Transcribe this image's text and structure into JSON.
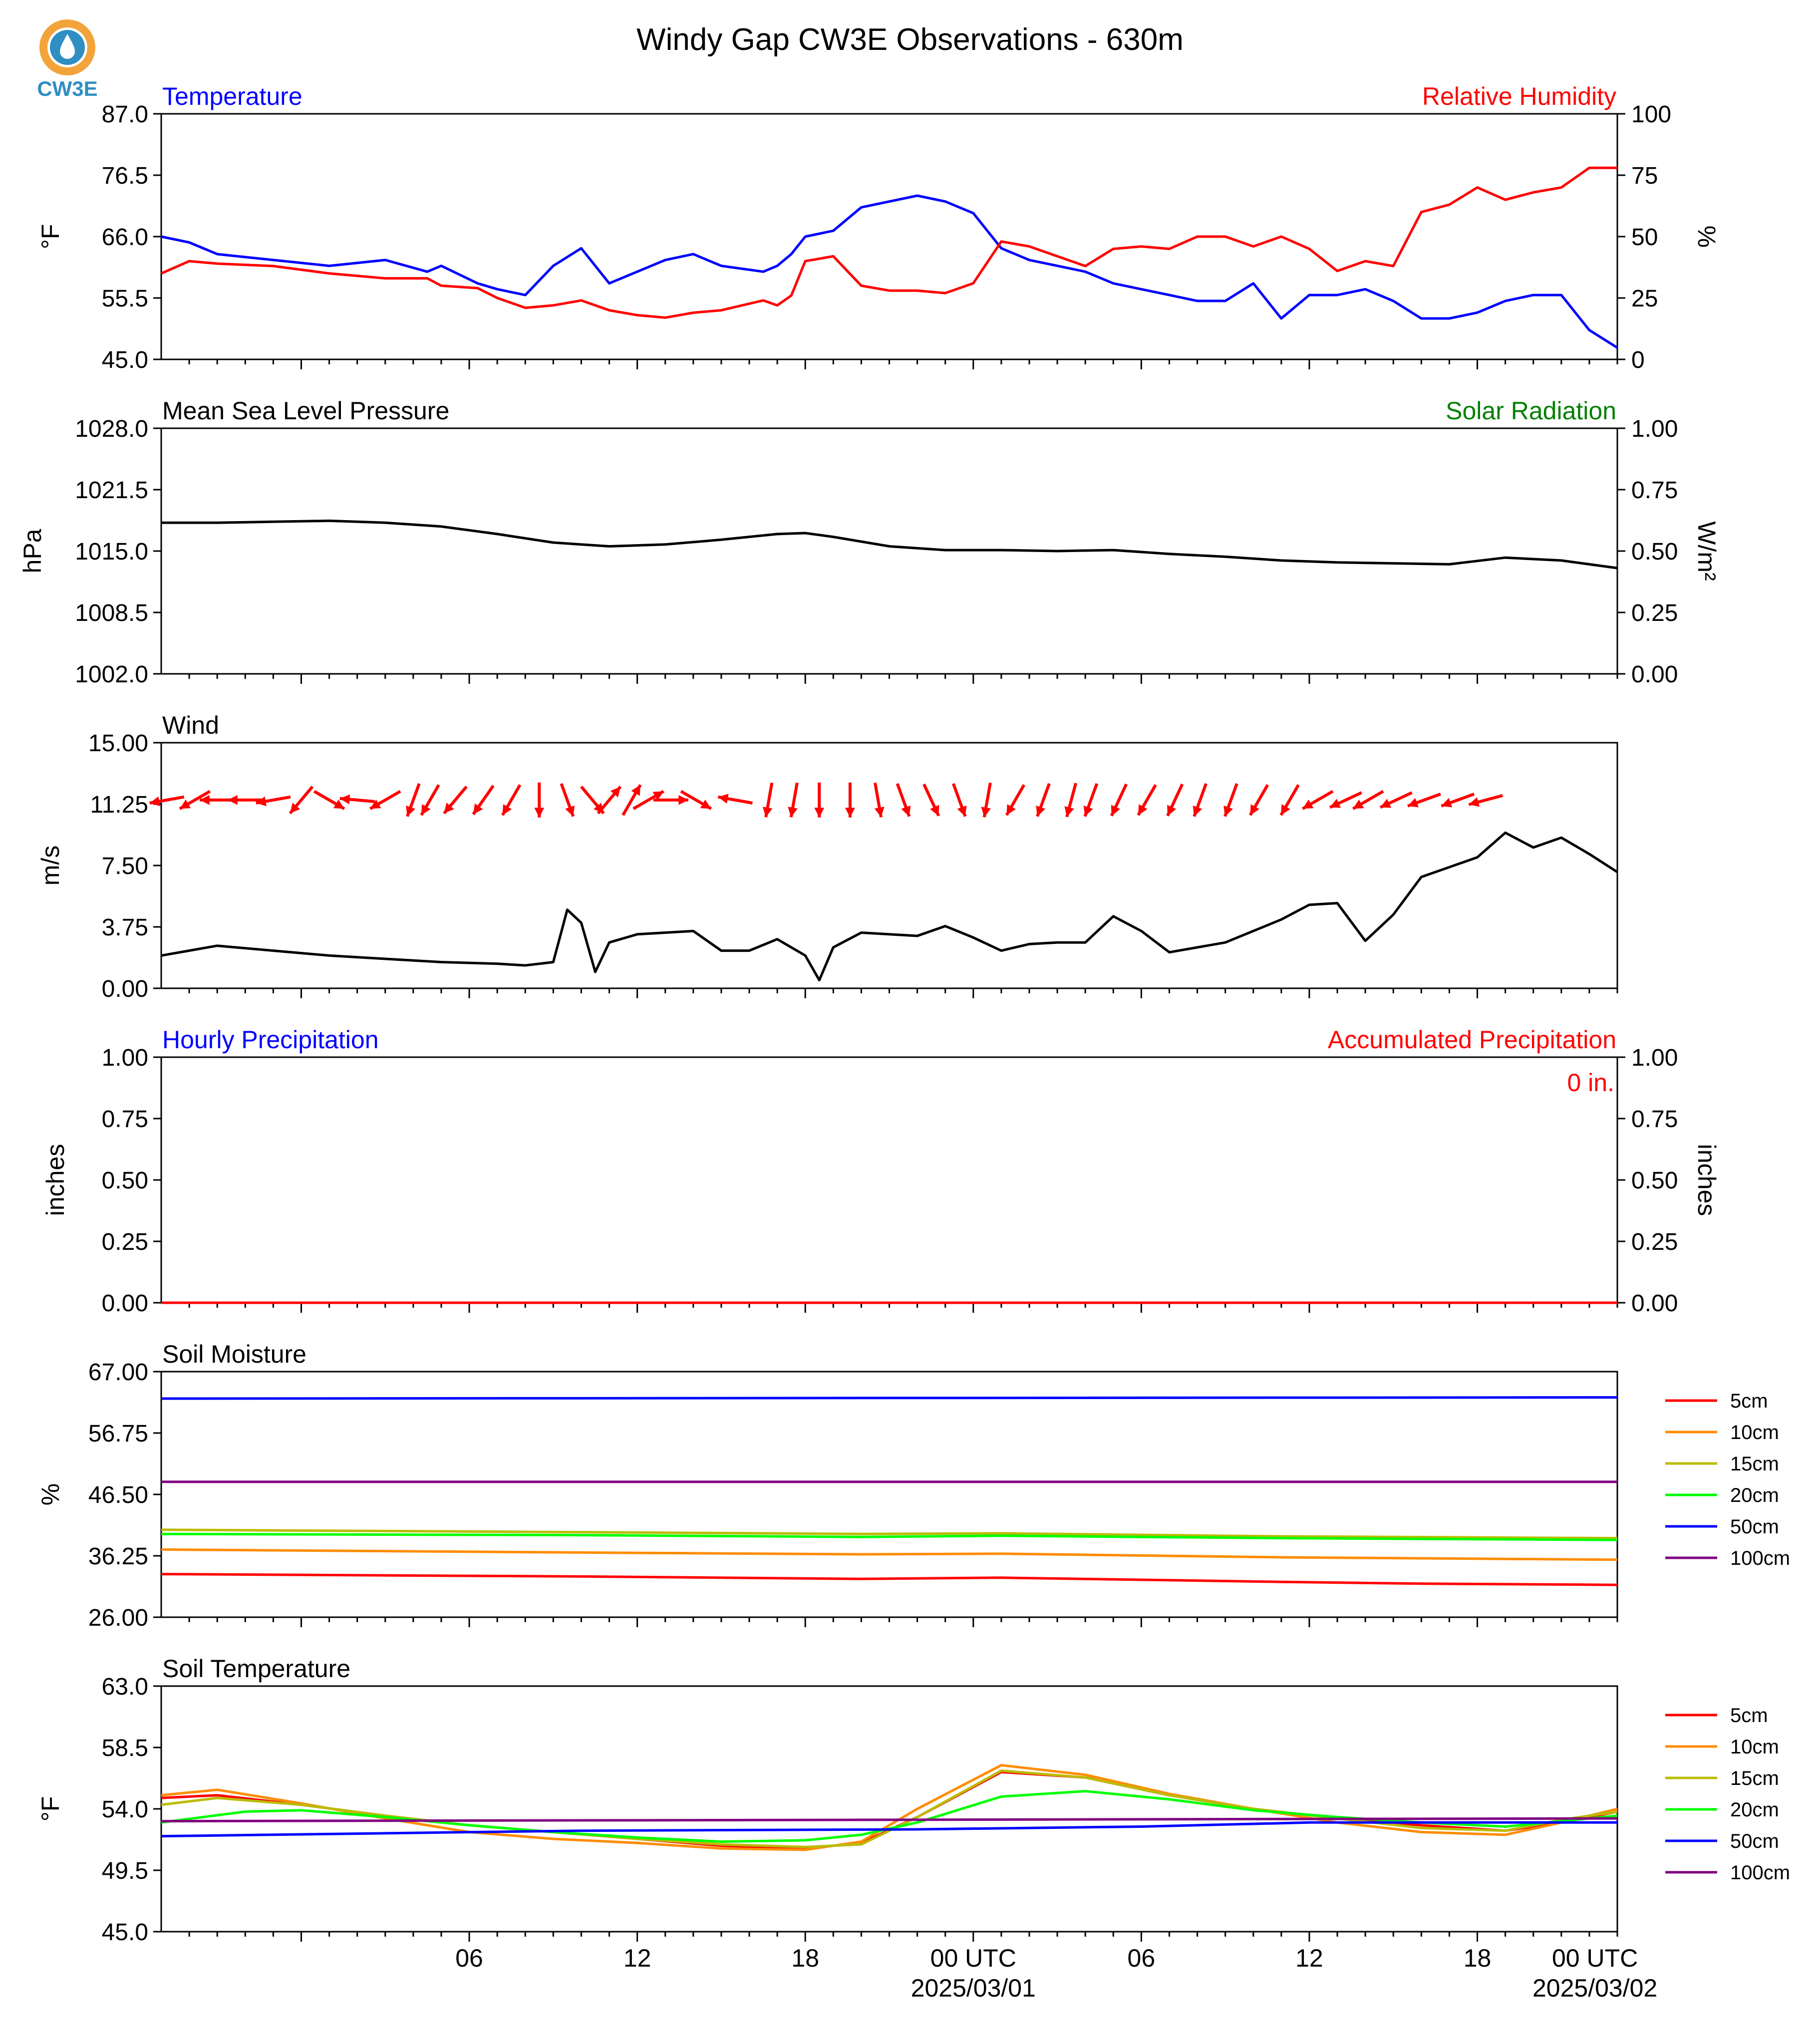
{
  "title": "Windy Gap CW3E Observations - 630m",
  "logo": {
    "text": "CW3E",
    "colors": {
      "ring": "#f2a33a",
      "drop": "#2f8ec2",
      "text": "#2f8ec2"
    }
  },
  "colors": {
    "red": "#ff0000",
    "blue": "#0000ff",
    "green": "#008000",
    "black": "#000000",
    "orange": "#ff8c00",
    "olive": "#bbbb00",
    "lime": "#00ff00",
    "purple": "#800080"
  },
  "time_axis": {
    "tick_labels": [
      "06",
      "12",
      "18",
      "00 UTC",
      "06",
      "12",
      "18",
      "00 UTC"
    ],
    "date_labels": [
      "2025/03/01",
      "2025/03/02"
    ]
  },
  "chart_data": [
    {
      "type": "line",
      "left_title": "Temperature",
      "right_title": "Relative Humidity",
      "ylabel": "°F",
      "right_ylabel": "%",
      "ylim": [
        45,
        87
      ],
      "right_ylim": [
        0,
        100
      ],
      "y_ticks": [
        "87.0",
        "76.5",
        "66.0",
        "55.5",
        "45.0"
      ],
      "right_y_ticks": [
        "100",
        "75",
        "50",
        "25",
        "0"
      ],
      "xlim": [
        -5,
        47
      ],
      "series": [
        {
          "axis": "left",
          "color": "#0000ff",
          "x": [
            -5,
            -4,
            -3,
            -1,
            1,
            3,
            4.5,
            5,
            6.3,
            7,
            8,
            9,
            10,
            11,
            12,
            13,
            14,
            15,
            16.5,
            17,
            17.5,
            18,
            19,
            20,
            21,
            22,
            23,
            24,
            25,
            26,
            27,
            28,
            29,
            30,
            31,
            32,
            33,
            34,
            35,
            36,
            37,
            38,
            39,
            40,
            41,
            42,
            43,
            44,
            45,
            46,
            47
          ],
          "y": [
            66,
            65,
            63,
            62,
            61,
            62,
            60,
            61,
            58,
            57,
            56,
            61,
            64,
            58,
            60,
            62,
            63,
            61,
            60,
            61,
            63,
            66,
            67,
            71,
            72,
            73,
            72,
            70,
            64,
            62,
            61,
            60,
            58,
            57,
            56,
            55,
            55,
            58,
            52,
            56,
            56,
            57,
            55,
            52,
            52,
            53,
            55,
            56,
            56,
            50,
            47
          ]
        },
        {
          "axis": "right",
          "color": "#ff0000",
          "x": [
            -5,
            -4,
            -3,
            -1,
            1,
            3,
            4.5,
            5,
            6.3,
            7,
            8,
            9,
            10,
            11,
            12,
            13,
            14,
            15,
            16.5,
            17,
            17.5,
            18,
            19,
            20,
            21,
            22,
            23,
            24,
            25,
            26,
            27,
            28,
            29,
            30,
            31,
            32,
            33,
            34,
            35,
            36,
            37,
            38,
            39,
            40,
            41,
            42,
            43,
            44,
            45,
            46,
            47
          ],
          "y": [
            35,
            40,
            39,
            38,
            35,
            33,
            33,
            30,
            29,
            25,
            21,
            22,
            24,
            20,
            18,
            17,
            19,
            20,
            24,
            22,
            26,
            40,
            42,
            30,
            28,
            28,
            27,
            31,
            48,
            46,
            42,
            38,
            45,
            46,
            45,
            50,
            50,
            46,
            50,
            45,
            36,
            40,
            38,
            60,
            63,
            70,
            65,
            68,
            70,
            78,
            78
          ]
        }
      ]
    },
    {
      "type": "line",
      "left_title": "Mean Sea Level Pressure",
      "right_title": "Solar Radiation",
      "ylabel": "hPa",
      "right_ylabel": "W/m²",
      "ylim": [
        1002,
        1028
      ],
      "right_ylim": [
        0,
        1
      ],
      "y_ticks": [
        "1028.0",
        "1021.5",
        "1015.0",
        "1008.5",
        "1002.0"
      ],
      "right_y_ticks": [
        "1.00",
        "0.75",
        "0.50",
        "0.25",
        "0.00"
      ],
      "xlim": [
        -5,
        47
      ],
      "series": [
        {
          "axis": "left",
          "color": "#000000",
          "x": [
            -5,
            -3,
            -1,
            1,
            3,
            5,
            7,
            9,
            11,
            13,
            15,
            17,
            18,
            19,
            21,
            23,
            25,
            27,
            29,
            31,
            33,
            35,
            37,
            39,
            41,
            43,
            45,
            47
          ],
          "y": [
            1018,
            1018,
            1018.1,
            1018.2,
            1018,
            1017.6,
            1016.8,
            1015.9,
            1015.5,
            1015.7,
            1016.2,
            1016.8,
            1016.9,
            1016.5,
            1015.5,
            1015.1,
            1015.1,
            1015.0,
            1015.1,
            1014.7,
            1014.4,
            1014.0,
            1013.8,
            1013.7,
            1013.6,
            1014.3,
            1014.0,
            1013.2
          ]
        }
      ]
    },
    {
      "type": "line",
      "left_title": "Wind",
      "ylabel": "m/s",
      "ylim": [
        0,
        15
      ],
      "y_ticks": [
        "15.00",
        "11.25",
        "7.50",
        "3.75",
        "0.00"
      ],
      "xlim": [
        -5,
        47
      ],
      "series": [
        {
          "axis": "left",
          "color": "#000000",
          "x": [
            -5,
            -3,
            -1,
            1,
            3,
            5,
            7,
            8,
            9,
            9.5,
            10,
            10.5,
            11,
            12,
            13,
            14,
            15,
            16,
            17,
            18,
            18.5,
            19,
            20,
            21,
            22,
            23,
            24,
            25,
            26,
            27,
            28,
            29,
            30,
            31,
            32,
            33,
            34,
            35,
            36,
            37,
            38,
            39,
            40,
            41,
            42,
            43,
            44,
            45,
            46,
            47
          ],
          "y": [
            2,
            2.6,
            2.3,
            2,
            1.8,
            1.6,
            1.5,
            1.4,
            1.6,
            4.8,
            4,
            1,
            2.8,
            3.3,
            3.4,
            3.5,
            2.3,
            2.3,
            3,
            2,
            0.5,
            2.5,
            3.4,
            3.3,
            3.2,
            3.8,
            3.1,
            2.3,
            2.7,
            2.8,
            2.8,
            4.4,
            3.5,
            2.2,
            2.5,
            2.8,
            3.5,
            4.2,
            5.1,
            5.2,
            2.9,
            4.5,
            6.8,
            7.4,
            8,
            9.5,
            8.6,
            9.2,
            8.2,
            7.1
          ]
        }
      ],
      "wind_barb_dirs_deg": [
        80,
        60,
        90,
        90,
        80,
        40,
        300,
        95,
        60,
        20,
        30,
        40,
        35,
        30,
        0,
        340,
        320,
        220,
        210,
        240,
        270,
        300,
        100,
        10,
        10,
        0,
        0,
        350,
        340,
        335,
        340,
        10,
        30,
        20,
        15,
        20,
        25,
        30,
        25,
        20,
        20,
        30,
        30,
        60,
        65,
        60,
        65,
        70,
        70,
        75
      ],
      "wind_barb_x": [
        -4.8,
        -3.8,
        -3,
        -2,
        -1,
        0,
        1,
        2,
        3,
        4,
        4.6,
        5.5,
        6.5,
        7.5,
        8.5,
        9.5,
        10.4,
        11,
        11.8,
        12.4,
        13.2,
        14.1,
        15.5,
        16.7,
        17.6,
        18.5,
        19.6,
        20.6,
        21.5,
        22.5,
        23.5,
        24.5,
        25.5,
        26.5,
        27.5,
        28.2,
        29.2,
        30.2,
        31.2,
        32.1,
        33.2,
        34.2,
        35.3,
        36.3,
        37.3,
        38.1,
        39.1,
        40.1,
        41.3,
        42.3
      ],
      "wind_barb_y_level": 11.5
    },
    {
      "type": "line",
      "left_title": "Hourly Precipitation",
      "right_title": "Accumulated Precipitation",
      "accum_label": "0 in.",
      "ylabel": "inches",
      "right_ylabel": "inches",
      "ylim": [
        0,
        1
      ],
      "right_ylim": [
        0,
        1
      ],
      "y_ticks": [
        "1.00",
        "0.75",
        "0.50",
        "0.25",
        "0.00"
      ],
      "right_y_ticks": [
        "1.00",
        "0.75",
        "0.50",
        "0.25",
        "0.00"
      ],
      "xlim": [
        -5,
        47
      ],
      "series": [
        {
          "axis": "left",
          "color": "#ff0000",
          "x": [
            -5,
            47
          ],
          "y": [
            0,
            0
          ]
        }
      ]
    },
    {
      "type": "line",
      "left_title": "Soil Moisture",
      "ylabel": "%",
      "ylim": [
        26,
        67
      ],
      "y_ticks": [
        "67.00",
        "56.75",
        "46.50",
        "36.25",
        "26.00"
      ],
      "xlim": [
        -5,
        47
      ],
      "legend": [
        "5cm",
        "10cm",
        "15cm",
        "20cm",
        "50cm",
        "100cm"
      ],
      "series": [
        {
          "name": "5cm",
          "color": "#ff0000",
          "x": [
            -5,
            10,
            20,
            25,
            35,
            40,
            47
          ],
          "y": [
            33.2,
            32.8,
            32.4,
            32.6,
            31.9,
            31.6,
            31.4
          ]
        },
        {
          "name": "10cm",
          "color": "#ff8c00",
          "x": [
            -5,
            10,
            20,
            25,
            35,
            47
          ],
          "y": [
            37.3,
            36.8,
            36.5,
            36.6,
            36.0,
            35.6
          ]
        },
        {
          "name": "15cm",
          "color": "#bbbb00",
          "x": [
            -5,
            10,
            20,
            25,
            35,
            47
          ],
          "y": [
            40.6,
            40.2,
            39.9,
            40.0,
            39.5,
            39.2
          ]
        },
        {
          "name": "20cm",
          "color": "#00ff00",
          "x": [
            -5,
            10,
            20,
            25,
            35,
            47
          ],
          "y": [
            39.9,
            39.7,
            39.4,
            39.6,
            39.2,
            38.9
          ]
        },
        {
          "name": "50cm",
          "color": "#0000ff",
          "x": [
            -5,
            47
          ],
          "y": [
            62.5,
            62.7
          ]
        },
        {
          "name": "100cm",
          "color": "#800080",
          "x": [
            -5,
            47
          ],
          "y": [
            48.6,
            48.6
          ]
        }
      ]
    },
    {
      "type": "line",
      "left_title": "Soil Temperature",
      "ylabel": "°F",
      "ylim": [
        45,
        63
      ],
      "y_ticks": [
        "63.0",
        "58.5",
        "54.0",
        "49.5",
        "45.0"
      ],
      "xlim": [
        -5,
        47
      ],
      "legend": [
        "5cm",
        "10cm",
        "15cm",
        "20cm",
        "50cm",
        "100cm"
      ],
      "series": [
        {
          "name": "5cm",
          "color": "#ff0000",
          "x": [
            -5,
            -3,
            0,
            3,
            6,
            9,
            12,
            15,
            18,
            20,
            22,
            25,
            28,
            31,
            34,
            37,
            40,
            43,
            45,
            47
          ],
          "y": [
            54.8,
            55.0,
            54.3,
            53.5,
            52.8,
            52.3,
            51.8,
            51.3,
            51.1,
            51.5,
            53.4,
            56.7,
            56.3,
            55.0,
            54.0,
            53.3,
            52.8,
            52.4,
            53.0,
            53.8
          ]
        },
        {
          "name": "10cm",
          "color": "#ff8c00",
          "x": [
            -5,
            -3,
            0,
            3,
            6,
            9,
            12,
            15,
            18,
            20,
            22,
            25,
            28,
            31,
            34,
            37,
            40,
            43,
            45,
            47
          ],
          "y": [
            55.0,
            55.4,
            54.4,
            53.3,
            52.3,
            51.8,
            51.5,
            51.1,
            51.0,
            51.6,
            54.0,
            57.2,
            56.5,
            55.1,
            54.0,
            53.0,
            52.3,
            52.1,
            53.0,
            54.0
          ]
        },
        {
          "name": "15cm",
          "color": "#bbbb00",
          "x": [
            -5,
            -3,
            0,
            3,
            6,
            9,
            12,
            15,
            18,
            20,
            22,
            25,
            28,
            31,
            34,
            37,
            40,
            43,
            45,
            47
          ],
          "y": [
            54.3,
            54.8,
            54.3,
            53.5,
            52.8,
            52.3,
            51.8,
            51.4,
            51.2,
            51.4,
            53.4,
            56.8,
            56.3,
            55.0,
            54.0,
            53.3,
            52.6,
            52.4,
            53.2,
            53.8
          ]
        },
        {
          "name": "20cm",
          "color": "#00ff00",
          "x": [
            -5,
            -2,
            0,
            3,
            6,
            9,
            12,
            15,
            18,
            20,
            22,
            25,
            28,
            31,
            34,
            37,
            40,
            43,
            45,
            47
          ],
          "y": [
            53.0,
            53.8,
            53.9,
            53.4,
            52.8,
            52.3,
            51.9,
            51.6,
            51.7,
            52.1,
            53.0,
            54.9,
            55.3,
            54.7,
            53.9,
            53.4,
            53.0,
            52.7,
            53.1,
            53.5
          ]
        },
        {
          "name": "50cm",
          "color": "#0000ff",
          "x": [
            -5,
            10,
            22,
            30,
            36,
            47
          ],
          "y": [
            52.0,
            52.4,
            52.5,
            52.7,
            53.0,
            53.0
          ]
        },
        {
          "name": "100cm",
          "color": "#800080",
          "x": [
            -5,
            47
          ],
          "y": [
            53.1,
            53.3
          ]
        }
      ]
    }
  ]
}
